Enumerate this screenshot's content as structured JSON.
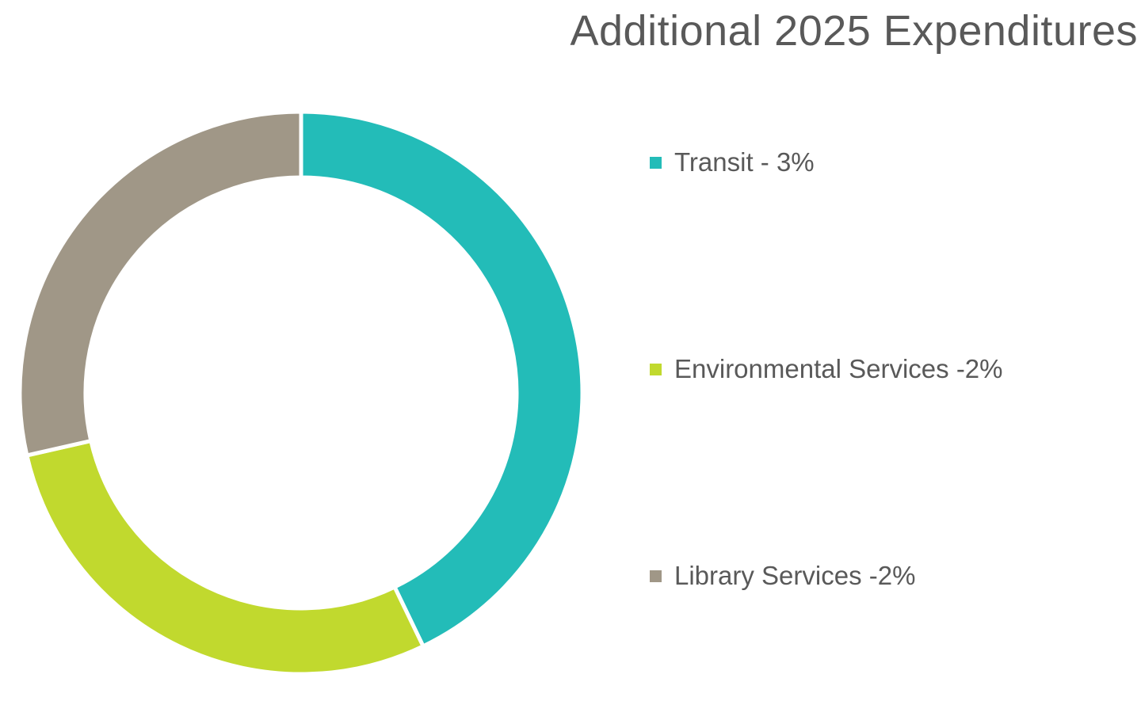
{
  "chart_data": {
    "type": "pie",
    "title": "Additional 2025 Expenditures",
    "labels": [
      "Transit - 3%",
      "Environmental Services -2%",
      "Library Services -2%"
    ],
    "values": [
      3,
      2,
      2
    ],
    "colors": [
      "#23BCB8",
      "#C1D92E",
      "#A09787"
    ],
    "legend": "right"
  }
}
